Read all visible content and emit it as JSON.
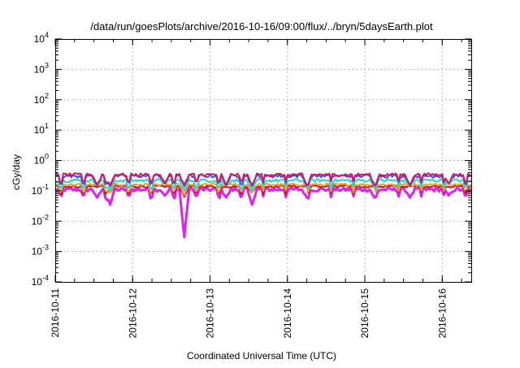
{
  "chart_data": {
    "type": "line",
    "title": "/data/run/goesPlots/archive/2016-10-16/09:00/flux/../bryn/5daysEarth.plot",
    "xlabel": "Coordinated Universal Time (UTC)",
    "ylabel": "cGy/day",
    "x_scale": "time",
    "y_scale": "log",
    "xlim": [
      "2016-10-11T00:00",
      "2016-10-16T09:00"
    ],
    "ylim": [
      0.0001,
      10000
    ],
    "grid": true,
    "x_ticks": [
      "2016-10-11",
      "2016-10-12",
      "2016-10-13",
      "2016-10-14",
      "2016-10-15",
      "2016-10-16"
    ],
    "y_ticks": [
      {
        "value": 0.0001,
        "base": "10",
        "exp": "-4"
      },
      {
        "value": 0.001,
        "base": "10",
        "exp": "-3"
      },
      {
        "value": 0.01,
        "base": "10",
        "exp": "-2"
      },
      {
        "value": 0.1,
        "base": "10",
        "exp": "-1"
      },
      {
        "value": 1,
        "base": "10",
        "exp": "0"
      },
      {
        "value": 10,
        "base": "10",
        "exp": "1"
      },
      {
        "value": 100,
        "base": "10",
        "exp": "2"
      },
      {
        "value": 1000,
        "base": "10",
        "exp": "3"
      },
      {
        "value": 10000,
        "base": "10",
        "exp": "4"
      }
    ],
    "series": [
      {
        "color": "#e0105a",
        "base": 0.34,
        "noise": 0.22
      },
      {
        "color": "#3355ee",
        "base": 0.31,
        "noise": 0.25
      },
      {
        "color": "#20d8c8",
        "base": 0.22,
        "noise": 0.25
      },
      {
        "color": "#f0a020",
        "base": 0.16,
        "noise": 0.18
      },
      {
        "color": "#cc1030",
        "base": 0.14,
        "noise": 0.18
      },
      {
        "color": "#e020f0",
        "base": 0.11,
        "noise": 0.3
      }
    ],
    "dips": [
      {
        "x": "2016-10-11T13:00",
        "value": 0.06
      },
      {
        "x": "2016-10-11T17:00",
        "value": 0.035
      },
      {
        "x": "2016-10-12T10:00",
        "value": 0.07
      },
      {
        "x": "2016-10-12T16:00",
        "value": 0.003
      },
      {
        "x": "2016-10-13T05:00",
        "value": 0.06
      },
      {
        "x": "2016-10-13T13:00",
        "value": 0.035
      },
      {
        "x": "2016-10-14T06:00",
        "value": 0.06
      },
      {
        "x": "2016-10-15T03:00",
        "value": 0.06
      },
      {
        "x": "2016-10-15T14:00",
        "value": 0.06
      },
      {
        "x": "2016-10-16T02:00",
        "value": 0.07
      }
    ]
  }
}
